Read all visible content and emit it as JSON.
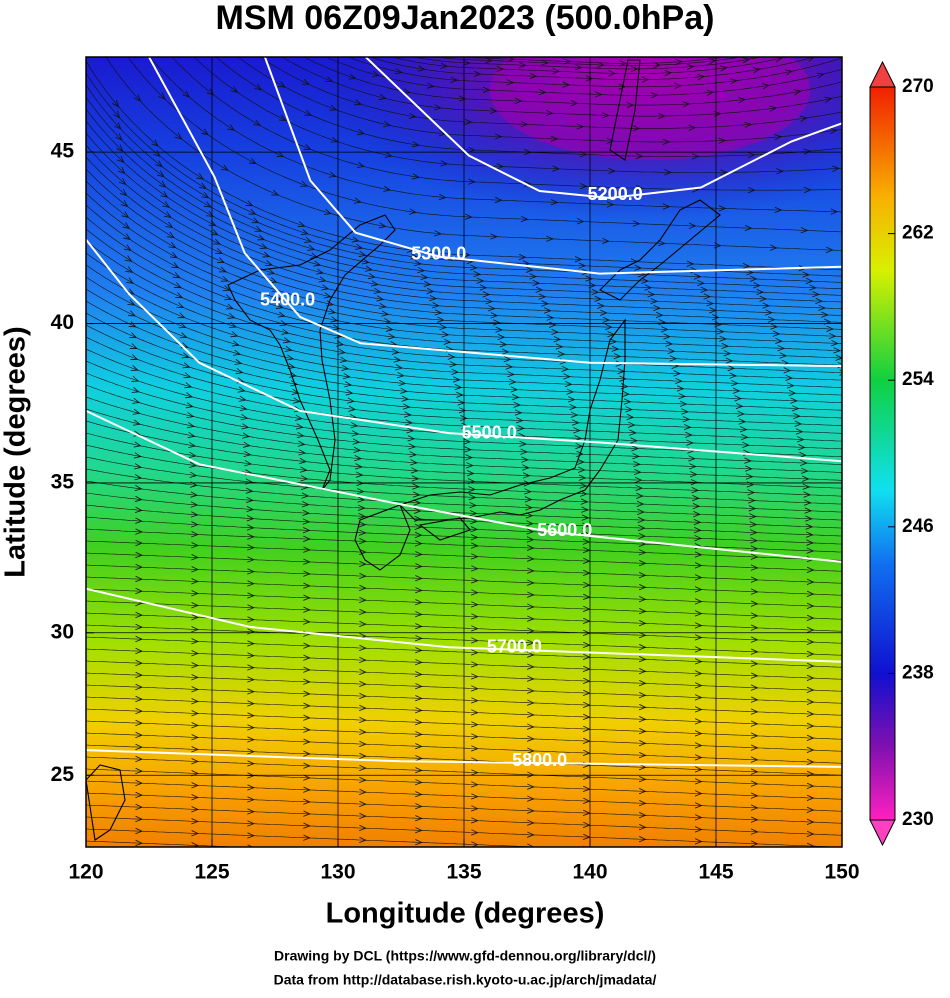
{
  "title": "MSM 06Z09Jan2023 (500.0hPa)",
  "x_label": "Longitude (degrees)",
  "y_label": "Latitude  (degrees)",
  "xlim": [
    120,
    150
  ],
  "ylim": [
    22.4,
    47.6
  ],
  "xticks": [
    120,
    125,
    130,
    135,
    140,
    145,
    150
  ],
  "yticks": [
    25,
    30,
    35,
    40,
    45
  ],
  "grid": true,
  "contours": [
    {
      "label": "5200.0",
      "lon": [
        131.1,
        135.2,
        138,
        140.8,
        144.4,
        148,
        150
      ],
      "lat": [
        47.6,
        44.9,
        43.9,
        43.7,
        44.0,
        45.3,
        45.8
      ]
    },
    {
      "label": "5300.0",
      "lon": [
        127.1,
        128.9,
        130.7,
        134,
        140.4,
        150
      ],
      "lat": [
        47.6,
        44.2,
        42.7,
        42.0,
        41.5,
        41.7
      ]
    },
    {
      "label": "5400.0",
      "lon": [
        122.5,
        125.1,
        126.3,
        128.5,
        130.9,
        140,
        150
      ],
      "lat": [
        47.6,
        44.3,
        42.1,
        40.2,
        39.4,
        38.8,
        38.7
      ]
    },
    {
      "label": "5500.0",
      "lon": [
        120,
        121.7,
        124.5,
        128.5,
        134.4,
        140.4,
        150
      ],
      "lat": [
        42.5,
        40.9,
        38.8,
        37.3,
        36.6,
        36.3,
        35.7
      ]
    },
    {
      "label": "5600.0",
      "lon": [
        120,
        124.5,
        132.5,
        138.4,
        150
      ],
      "lat": [
        37.3,
        35.6,
        34.3,
        33.4,
        32.4
      ]
    },
    {
      "label": "5700.0",
      "lon": [
        120,
        126.5,
        134.4,
        150
      ],
      "lat": [
        31.5,
        30.2,
        29.5,
        29.0
      ]
    },
    {
      "label": "5800.0",
      "lon": [
        120,
        132.5,
        150
      ],
      "lat": [
        25.9,
        25.5,
        25.3
      ]
    }
  ],
  "colorbar": {
    "lim": [
      230,
      270
    ],
    "ticks": [
      230,
      238,
      246,
      254,
      262,
      270
    ]
  },
  "credits": [
    "Drawing by DCL (https://www.gfd-dennou.org/library/dcl/)",
    "Data from http://database.rish.kyoto-u.ac.jp/arch/jmadata/"
  ]
}
